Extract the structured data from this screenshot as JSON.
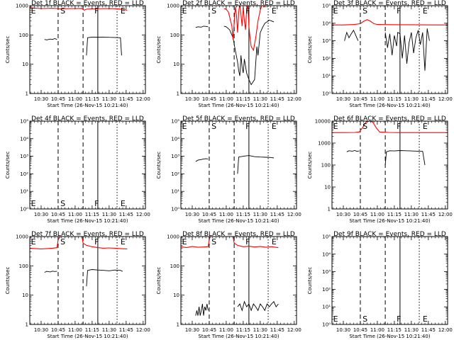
{
  "figure": {
    "xlabel": "Start Time (26-Nov-15 10:21:40)",
    "ylabel": "Counts/sec",
    "x_tick_labels": [
      "10:30",
      "10:45",
      "11:00",
      "11:15",
      "11:30",
      "11:45",
      "12:00"
    ],
    "events_color": "#000000",
    "lld_color": "#ff0000"
  },
  "chart_data": [
    {
      "type": "line",
      "title": "Det 1f BLACK = Events, RED = LLD",
      "x_unit": "minutes after 10:30",
      "xlim": [
        -10,
        92
      ],
      "scale": "log",
      "ylim": [
        1,
        1000
      ],
      "y_ticks": [
        "1",
        "10",
        "100",
        "1000"
      ],
      "markers": [
        {
          "label": "E",
          "x": -9
        },
        {
          "label": "S",
          "x": 17
        },
        {
          "label": "F",
          "x": 47
        },
        {
          "label": "E",
          "x": 70
        }
      ],
      "lines": [
        {
          "x": 15,
          "style": "dashed"
        },
        {
          "x": 37,
          "style": "dashed"
        },
        {
          "x": 50,
          "style": "solid"
        },
        {
          "x": 67,
          "style": "dotted"
        }
      ],
      "series": [
        {
          "role": "events",
          "x": [
            3,
            5,
            8,
            10,
            12,
            14
          ],
          "y": [
            70,
            68,
            72,
            70,
            75,
            70
          ]
        },
        {
          "role": "events",
          "x": [
            40,
            41,
            45,
            50,
            55,
            60,
            65,
            70,
            71
          ],
          "y": [
            20,
            80,
            85,
            84,
            85,
            83,
            82,
            80,
            20
          ]
        },
        {
          "role": "lld",
          "x": [
            -10,
            0,
            10,
            14,
            16,
            20,
            30,
            36,
            38,
            40,
            45,
            55,
            65,
            72,
            76
          ],
          "y": [
            850,
            800,
            820,
            800,
            780,
            790,
            800,
            810,
            700,
            760,
            780,
            800,
            790,
            750,
            700
          ]
        }
      ]
    },
    {
      "type": "line",
      "title": "Det 2f BLACK = Events, RED = LLD",
      "x_unit": "minutes after 10:30",
      "xlim": [
        -10,
        92
      ],
      "scale": "log",
      "ylim": [
        1,
        1000
      ],
      "y_ticks": [
        "1",
        "10",
        "100",
        "1000"
      ],
      "markers": [
        {
          "label": "E",
          "x": -9
        },
        {
          "label": "S",
          "x": 17
        },
        {
          "label": "F",
          "x": 47
        },
        {
          "label": "E",
          "x": 70
        }
      ],
      "lines": [
        {
          "x": 15,
          "style": "dashed"
        },
        {
          "x": 37,
          "style": "dashed"
        },
        {
          "x": 50,
          "style": "solid"
        },
        {
          "x": 67,
          "style": "dotted"
        }
      ],
      "series": [
        {
          "role": "events",
          "x": [
            3,
            5,
            8,
            10,
            12,
            14
          ],
          "y": [
            180,
            190,
            185,
            200,
            195,
            190
          ]
        },
        {
          "role": "events",
          "x": [
            28,
            30,
            33,
            36,
            38,
            40,
            41,
            42,
            43,
            44,
            45,
            46,
            48,
            50,
            52,
            55,
            57,
            58,
            60,
            62,
            64,
            66,
            68,
            70,
            72
          ],
          "y": [
            200,
            190,
            150,
            80,
            30,
            12,
            6,
            4,
            20,
            8,
            5,
            15,
            5,
            3,
            2,
            3,
            40,
            20,
            120,
            180,
            250,
            280,
            320,
            300,
            280
          ]
        },
        {
          "role": "lld",
          "x": [
            28,
            30,
            32,
            35,
            36,
            37,
            38,
            39,
            40,
            41,
            42,
            43,
            44,
            45,
            46,
            47,
            48,
            49,
            50,
            51,
            52,
            54,
            56,
            58,
            60,
            62,
            64,
            66,
            68,
            70,
            72
          ],
          "y": [
            800,
            750,
            600,
            200,
            70,
            250,
            900,
            500,
            120,
            600,
            1200,
            500,
            200,
            900,
            300,
            150,
            700,
            1100,
            200,
            80,
            40,
            30,
            80,
            300,
            700,
            1200,
            900,
            1300,
            1100,
            1200,
            1000
          ]
        }
      ]
    },
    {
      "type": "line",
      "title": "Det 3f BLACK = Events, RED = LLD",
      "x_unit": "minutes after 10:30",
      "xlim": [
        -10,
        92
      ],
      "scale": "log",
      "ylim": [
        1,
        100000
      ],
      "y_ticks": [
        "10⁰",
        "10¹",
        "10²",
        "10³",
        "10⁴",
        "10⁵"
      ],
      "markers": [
        {
          "label": "E",
          "x": -9
        },
        {
          "label": "S",
          "x": 17
        },
        {
          "label": "F",
          "x": 47
        },
        {
          "label": "E",
          "x": 70
        }
      ],
      "lines": [
        {
          "x": 15,
          "style": "dashed"
        },
        {
          "x": 37,
          "style": "dashed"
        },
        {
          "x": 50,
          "style": "solid"
        },
        {
          "x": 67,
          "style": "dotted"
        }
      ],
      "series": [
        {
          "role": "events",
          "x": [
            1,
            3,
            5,
            7,
            9,
            11,
            13
          ],
          "y": [
            1000,
            3000,
            1500,
            2500,
            4000,
            2000,
            1000
          ]
        },
        {
          "role": "events",
          "x": [
            37,
            39,
            41,
            43,
            45,
            47,
            48,
            50,
            52,
            54,
            56,
            58,
            60,
            62,
            64,
            66,
            68,
            70,
            72,
            74,
            76
          ],
          "y": [
            3000,
            400,
            2500,
            150,
            2000,
            500,
            3000,
            2500,
            100,
            2000,
            50,
            800,
            3000,
            200,
            1500,
            4000,
            600,
            3000,
            20,
            5000,
            1000
          ]
        },
        {
          "role": "lld",
          "x": [
            -10,
            0,
            10,
            15,
            18,
            21,
            24,
            27,
            30,
            40,
            50,
            60,
            70,
            80,
            92
          ],
          "y": [
            8000,
            8000,
            8500,
            9500,
            13000,
            16000,
            13000,
            9500,
            8500,
            8300,
            8200,
            8200,
            8100,
            8000,
            8000
          ]
        }
      ]
    },
    {
      "type": "line",
      "title": "Det 4f BLACK = Events, RED = LLD",
      "x_unit": "minutes after 10:30",
      "xlim": [
        -10,
        92
      ],
      "scale": "log",
      "ylim": [
        1,
        100000
      ],
      "y_ticks": [
        "10⁰",
        "10¹",
        "10²",
        "10³",
        "10⁴",
        "10⁵"
      ],
      "markers": [
        {
          "label": "E",
          "x": -9
        },
        {
          "label": "S",
          "x": 17
        },
        {
          "label": "F",
          "x": 47
        },
        {
          "label": "E",
          "x": 70
        }
      ],
      "lines": [
        {
          "x": 15,
          "style": "dashed"
        },
        {
          "x": 37,
          "style": "dashed"
        },
        {
          "x": 50,
          "style": "solid"
        },
        {
          "x": 67,
          "style": "dotted"
        }
      ],
      "series": []
    },
    {
      "type": "line",
      "title": "Det 5f BLACK = Events, RED = LLD",
      "x_unit": "minutes after 10:30",
      "xlim": [
        -10,
        92
      ],
      "scale": "log",
      "ylim": [
        1,
        100000
      ],
      "y_ticks": [
        "10⁰",
        "10¹",
        "10²",
        "10³",
        "10⁴",
        "10⁵"
      ],
      "markers": [
        {
          "label": "E",
          "x": -9
        },
        {
          "label": "S",
          "x": 17
        },
        {
          "label": "F",
          "x": 47
        },
        {
          "label": "E",
          "x": 70
        }
      ],
      "lines": [
        {
          "x": 15,
          "style": "dashed"
        },
        {
          "x": 37,
          "style": "dashed"
        },
        {
          "x": 50,
          "style": "solid"
        },
        {
          "x": 67,
          "style": "dotted"
        }
      ],
      "series": [
        {
          "role": "events",
          "x": [
            3,
            5,
            8,
            10,
            12,
            14
          ],
          "y": [
            500,
            600,
            650,
            700,
            720,
            700
          ]
        },
        {
          "role": "events",
          "x": [
            40,
            41,
            45,
            50,
            55,
            60,
            65,
            70,
            72
          ],
          "y": [
            100,
            900,
            1000,
            1100,
            950,
            900,
            880,
            850,
            800
          ]
        }
      ]
    },
    {
      "type": "line",
      "title": "Det 6f BLACK = Events, RED = LLD",
      "x_unit": "minutes after 10:30",
      "xlim": [
        -10,
        92
      ],
      "scale": "log",
      "ylim": [
        1,
        10000
      ],
      "y_ticks": [
        "1",
        "10",
        "100",
        "1000",
        "10000"
      ],
      "markers": [
        {
          "label": "E",
          "x": -9
        },
        {
          "label": "S",
          "x": 17
        },
        {
          "label": "F",
          "x": 47
        },
        {
          "label": "E",
          "x": 70
        }
      ],
      "lines": [
        {
          "x": 15,
          "style": "dashed"
        },
        {
          "x": 37,
          "style": "dashed"
        },
        {
          "x": 50,
          "style": "solid"
        },
        {
          "x": 67,
          "style": "dotted"
        }
      ],
      "series": [
        {
          "role": "events",
          "x": [
            3,
            5,
            8,
            10,
            12,
            14
          ],
          "y": [
            400,
            450,
            430,
            460,
            420,
            440
          ]
        },
        {
          "role": "events",
          "x": [
            37,
            38,
            41,
            45,
            50,
            55,
            60,
            65,
            70,
            72
          ],
          "y": [
            100,
            400,
            450,
            440,
            460,
            450,
            440,
            430,
            420,
            100
          ]
        },
        {
          "role": "lld",
          "x": [
            -10,
            0,
            10,
            14,
            17,
            20,
            23,
            26,
            29,
            32,
            40,
            50,
            60,
            70,
            80,
            92
          ],
          "y": [
            3000,
            3000,
            3050,
            3200,
            5000,
            9000,
            10000,
            9000,
            5000,
            3200,
            3050,
            3000,
            3000,
            3000,
            3000,
            3000
          ]
        }
      ]
    },
    {
      "type": "line",
      "title": "Det 7f BLACK = Events, RED = LLD",
      "x_unit": "minutes after 10:30",
      "xlim": [
        -10,
        92
      ],
      "scale": "log",
      "ylim": [
        1,
        1000
      ],
      "y_ticks": [
        "1",
        "10",
        "100",
        "1000"
      ],
      "markers": [
        {
          "label": "E",
          "x": -9
        },
        {
          "label": "S",
          "x": 17
        },
        {
          "label": "F",
          "x": 47
        },
        {
          "label": "E",
          "x": 70
        }
      ],
      "lines": [
        {
          "x": 15,
          "style": "dashed"
        },
        {
          "x": 37,
          "style": "dashed"
        },
        {
          "x": 50,
          "style": "solid"
        },
        {
          "x": 67,
          "style": "dotted"
        }
      ],
      "series": [
        {
          "role": "events",
          "x": [
            3,
            5,
            8,
            10,
            12,
            14
          ],
          "y": [
            60,
            65,
            62,
            66,
            64,
            65
          ]
        },
        {
          "role": "events",
          "x": [
            40,
            41,
            45,
            50,
            55,
            60,
            65,
            70,
            72
          ],
          "y": [
            20,
            70,
            75,
            72,
            70,
            68,
            72,
            70,
            65
          ]
        },
        {
          "role": "lld",
          "x": [
            -10,
            0,
            10,
            14,
            15,
            17,
            19,
            21,
            36,
            37,
            40,
            45,
            50,
            55,
            60,
            65,
            70,
            76
          ],
          "y": [
            400,
            380,
            400,
            420,
            800,
            1000,
            1000,
            1000,
            1000,
            600,
            500,
            450,
            420,
            400,
            410,
            400,
            390,
            380
          ]
        }
      ]
    },
    {
      "type": "line",
      "title": "Det 8f BLACK = Events, RED = LLD",
      "x_unit": "minutes after 10:30",
      "xlim": [
        -10,
        92
      ],
      "scale": "log",
      "ylim": [
        1,
        1000
      ],
      "y_ticks": [
        "1",
        "10",
        "100",
        "1000"
      ],
      "markers": [
        {
          "label": "E",
          "x": -9
        },
        {
          "label": "S",
          "x": 17
        },
        {
          "label": "F",
          "x": 47
        },
        {
          "label": "E",
          "x": 70
        }
      ],
      "lines": [
        {
          "x": 15,
          "style": "dashed"
        },
        {
          "x": 37,
          "style": "dashed"
        },
        {
          "x": 50,
          "style": "solid"
        },
        {
          "x": 67,
          "style": "dotted"
        }
      ],
      "series": [
        {
          "role": "events",
          "x": [
            3,
            4,
            5,
            6,
            7,
            8,
            9,
            10,
            11,
            12,
            13,
            14
          ],
          "y": [
            2,
            3,
            2,
            4,
            2,
            3,
            5,
            2,
            4,
            3,
            5,
            3
          ]
        },
        {
          "role": "events",
          "x": [
            40,
            42,
            44,
            46,
            48,
            50,
            52,
            54,
            56,
            58,
            60,
            62,
            64,
            66,
            68,
            70,
            72,
            74,
            76
          ],
          "y": [
            4,
            5,
            3,
            6,
            4,
            5,
            3,
            5,
            4,
            3,
            5,
            4,
            3,
            5,
            4,
            5,
            6,
            4,
            5
          ]
        },
        {
          "role": "lld",
          "x": [
            -10,
            -5,
            0,
            5,
            10,
            14,
            15,
            16,
            17,
            36,
            37,
            40,
            45,
            50,
            55,
            60,
            65,
            70,
            76
          ],
          "y": [
            450,
            420,
            460,
            430,
            440,
            450,
            800,
            1000,
            1000,
            1000,
            600,
            500,
            450,
            470,
            440,
            460,
            430,
            450,
            420
          ]
        }
      ]
    },
    {
      "type": "line",
      "title": "Det 9f BLACK = Events, RED = LLD",
      "x_unit": "minutes after 10:30",
      "xlim": [
        -10,
        92
      ],
      "scale": "log",
      "ylim": [
        1,
        100000
      ],
      "y_ticks": [
        "10⁰",
        "10¹",
        "10²",
        "10³",
        "10⁴",
        "10⁵"
      ],
      "markers": [
        {
          "label": "E",
          "x": -9
        },
        {
          "label": "S",
          "x": 17
        },
        {
          "label": "F",
          "x": 47
        },
        {
          "label": "E",
          "x": 70
        }
      ],
      "lines": [
        {
          "x": 15,
          "style": "dashed"
        },
        {
          "x": 37,
          "style": "dashed"
        },
        {
          "x": 50,
          "style": "solid"
        },
        {
          "x": 67,
          "style": "dotted"
        }
      ],
      "series": []
    }
  ]
}
